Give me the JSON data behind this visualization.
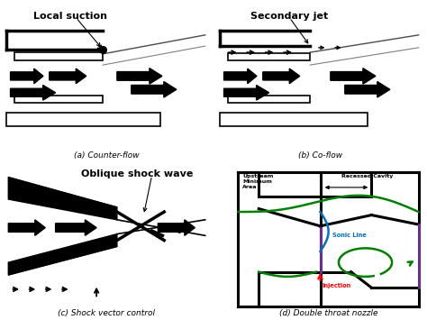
{
  "panel_a_label": "(a) Counter-flow",
  "panel_b_label": "(b) Co-flow",
  "panel_c_label": "(c) Shock vector control",
  "panel_d_label": "(d) Double throat nozzle",
  "local_suction_text": "Local suction",
  "secondary_jet_text": "Secondary jet",
  "oblique_shock_text": "Oblique shock wave",
  "upstream_text": "Upstream\nMinimum\nArea",
  "recessed_cavity_text": "Recessed Cavity",
  "sonic_line_text": "Sonic Line",
  "injection_text": "Injection",
  "bg_color": "#ffffff",
  "black": "#000000",
  "green": "#008000",
  "blue": "#0070C0",
  "purple": "#7030A0",
  "red": "#FF0000"
}
